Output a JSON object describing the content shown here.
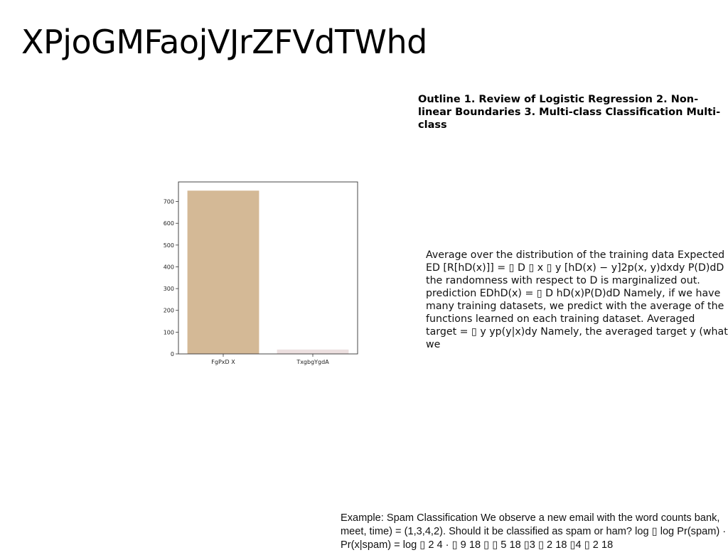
{
  "slide": {
    "title": "XPjoGMFaojVJrZFVdTWhd",
    "outline": "Outline 1. Review of Logistic Regression 2. Non-linear Boundaries 3. Multi-class Classification Multi-class",
    "body": "Average over the distribution of the training data Expected ED [R[hD(x)]] = ▯ D ▯ x ▯ y [hD(x) − y]2p(x, y)dxdy P(D)dD the randomness with respect to D is marginalized out. prediction EDhD(x) = ▯ D hD(x)P(D)dD Namely, if we have many training datasets, we predict with the average of the functions learned on each training dataset. Averaged target = ▯ y yp(y|x)dy Namely, the averaged target y (what we",
    "footer": "Example: Spam Classification We observe a new email with the word counts bank, meet, time) = (1,3,4,2). Should it be classified as spam or ham? log ▯ log Pr(spam) · Pr(x|spam) = log ▯ 2 4 · ▯ 9 18 ▯ ▯ 5 18 ▯3 ▯ 2 18 ▯4 ▯ 2 18"
  },
  "chart_data": {
    "type": "bar",
    "categories": [
      "FgPxD X",
      "TxgbgYgdA"
    ],
    "values": [
      750,
      20
    ],
    "colors": [
      "#d4b996",
      "#ecdfdf"
    ],
    "ylim": [
      0,
      790
    ],
    "yticks": [
      0,
      100,
      200,
      300,
      400,
      500,
      600,
      700
    ],
    "title": "",
    "xlabel": "",
    "ylabel": ""
  }
}
